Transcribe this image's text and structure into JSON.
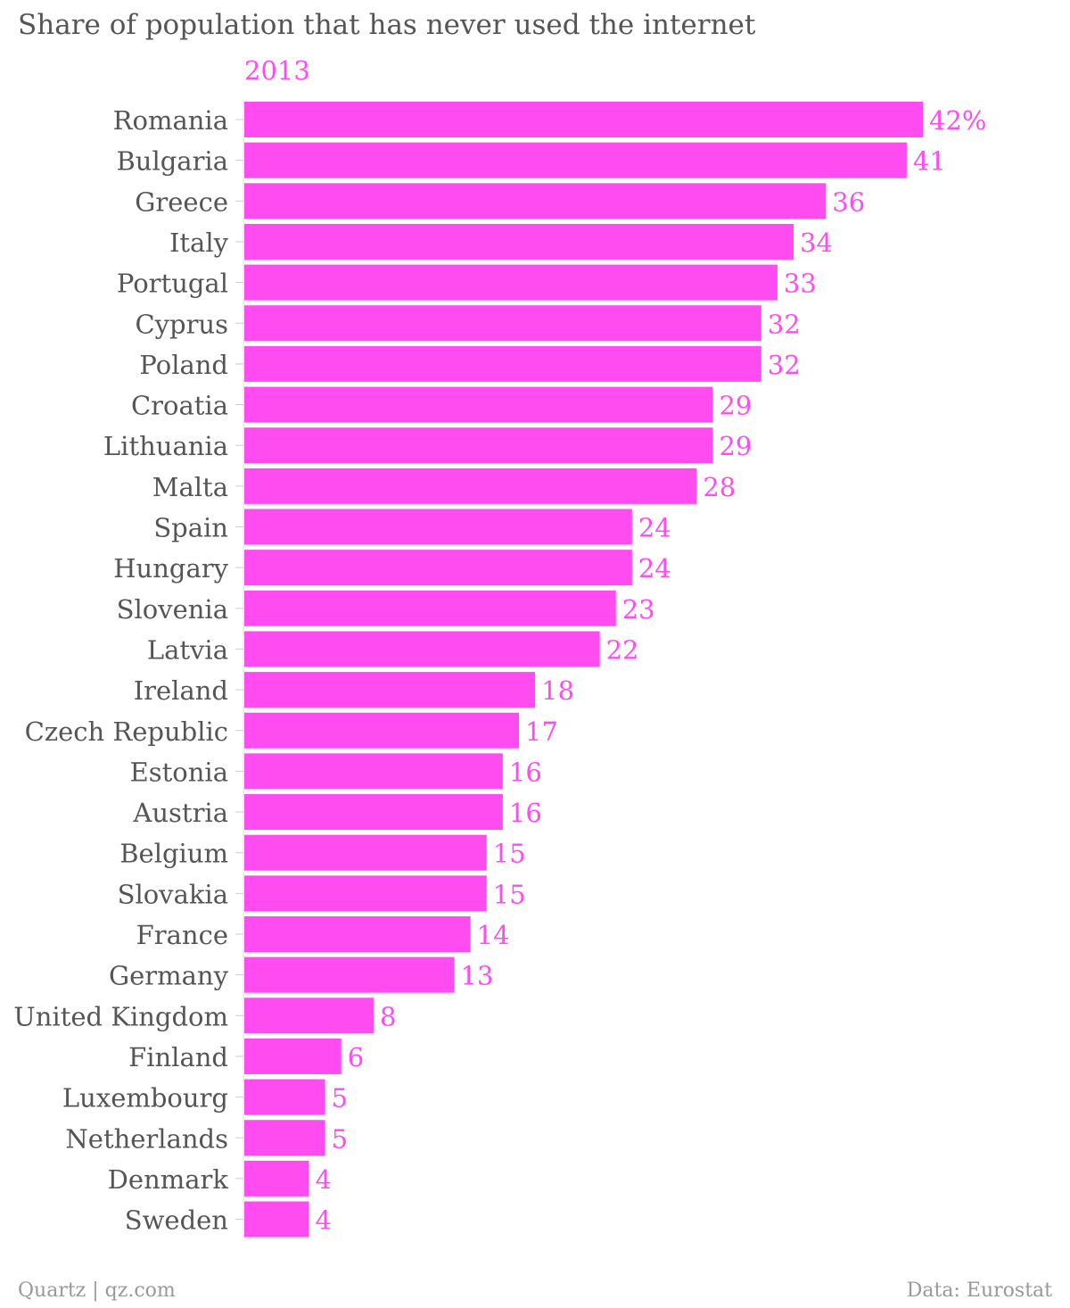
{
  "chart_data": {
    "type": "bar",
    "orientation": "horizontal",
    "title": "Share of population that has never used the internet",
    "series": [
      {
        "name": "2013",
        "values": [
          42,
          41,
          36,
          34,
          33,
          32,
          32,
          29,
          29,
          28,
          24,
          24,
          23,
          22,
          18,
          17,
          16,
          16,
          15,
          15,
          14,
          13,
          8,
          6,
          5,
          5,
          4,
          4
        ]
      }
    ],
    "categories": [
      "Romania",
      "Bulgaria",
      "Greece",
      "Italy",
      "Portugal",
      "Cyprus",
      "Poland",
      "Croatia",
      "Lithuania",
      "Malta",
      "Spain",
      "Hungary",
      "Slovenia",
      "Latvia",
      "Ireland",
      "Czech Republic",
      "Estonia",
      "Austria",
      "Belgium",
      "Slovakia",
      "France",
      "Germany",
      "United Kingdom",
      "Finland",
      "Luxembourg",
      "Netherlands",
      "Denmark",
      "Sweden"
    ],
    "value_labels": [
      "42%",
      "41",
      "36",
      "34",
      "33",
      "32",
      "32",
      "29",
      "29",
      "28",
      "24",
      "24",
      "23",
      "22",
      "18",
      "17",
      "16",
      "16",
      "15",
      "15",
      "14",
      "13",
      "8",
      "6",
      "5",
      "5",
      "4",
      "4"
    ],
    "xlim": [
      0,
      42
    ],
    "grid": false,
    "legend": "none",
    "colors": {
      "bar": "#ff4cf0",
      "value_label": "#ff4cf0",
      "category_label": "#555555",
      "title": "#555555",
      "footer": "#999999"
    }
  },
  "footer": {
    "source_left": "Quartz | qz.com",
    "source_right": "Data: Eurostat"
  }
}
